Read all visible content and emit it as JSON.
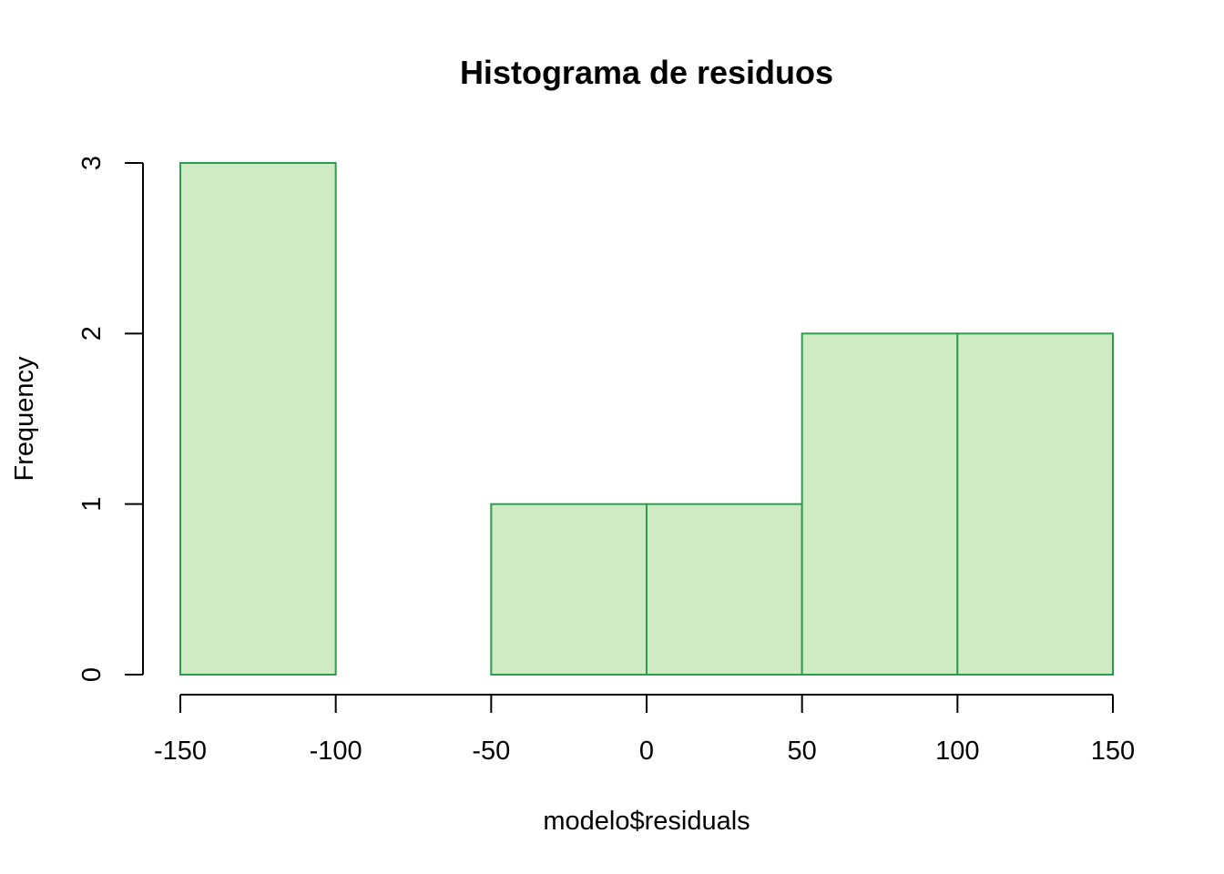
{
  "chart_data": {
    "type": "bar",
    "title": "Histograma de residuos",
    "xlabel": "modelo$residuals",
    "ylabel": "Frequency",
    "bins": [
      {
        "start": -150,
        "end": -100,
        "count": 3
      },
      {
        "start": -100,
        "end": -50,
        "count": 0
      },
      {
        "start": -50,
        "end": 0,
        "count": 1
      },
      {
        "start": 0,
        "end": 50,
        "count": 1
      },
      {
        "start": 50,
        "end": 100,
        "count": 2
      },
      {
        "start": 100,
        "end": 150,
        "count": 2
      }
    ],
    "xlim": [
      -150,
      150
    ],
    "ylim": [
      0,
      3
    ],
    "x_ticks": [
      -150,
      -100,
      -50,
      0,
      50,
      100,
      150
    ],
    "y_ticks": [
      0,
      1,
      2,
      3
    ],
    "x_tick_labels": [
      "-150",
      "-100",
      "-50",
      "0",
      "50",
      "100",
      "150"
    ],
    "y_tick_labels": [
      "0",
      "1",
      "2",
      "3"
    ],
    "grid": false,
    "colors": {
      "bar_fill": "#CFEBC3",
      "bar_stroke": "#2E9B4E"
    }
  }
}
